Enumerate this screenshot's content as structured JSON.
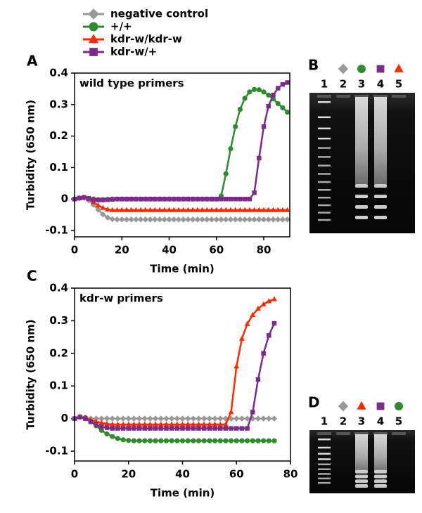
{
  "chart_data": [
    {
      "type": "line",
      "panel_label": "A",
      "annotation": "wild type primers",
      "x_label": "Time (min)",
      "y_label": "Turbidity (650 nm)",
      "legend": true,
      "x": [
        0,
        2,
        4,
        6,
        8,
        10,
        12,
        14,
        16,
        18,
        20,
        22,
        24,
        26,
        28,
        30,
        32,
        34,
        36,
        38,
        40,
        42,
        44,
        46,
        48,
        50,
        52,
        54,
        56,
        58,
        60,
        62,
        64,
        66,
        68,
        70,
        72,
        74,
        76,
        78,
        80,
        82,
        84,
        86,
        88,
        90
      ],
      "xlim": [
        0,
        91
      ],
      "xticks": [
        0,
        20,
        40,
        60,
        80
      ],
      "ylim": [
        -0.12,
        0.4
      ],
      "yticks": [
        -0.1,
        0,
        0.1,
        0.2,
        0.3,
        0.4
      ],
      "series": [
        {
          "name": "negative control",
          "color": "#999999",
          "marker": "diamond",
          "values": [
            0,
            0.003,
            0.004,
            -0.004,
            -0.018,
            -0.034,
            -0.049,
            -0.059,
            -0.064,
            -0.065,
            -0.065,
            -0.065,
            -0.065,
            -0.065,
            -0.065,
            -0.065,
            -0.065,
            -0.065,
            -0.065,
            -0.065,
            -0.065,
            -0.065,
            -0.065,
            -0.065,
            -0.065,
            -0.065,
            -0.065,
            -0.065,
            -0.065,
            -0.065,
            -0.065,
            -0.065,
            -0.065,
            -0.065,
            -0.065,
            -0.065,
            -0.065,
            -0.065,
            -0.065,
            -0.065,
            -0.065,
            -0.065,
            -0.065,
            -0.065,
            -0.065,
            -0.065
          ]
        },
        {
          "name": "+/+",
          "color": "#2e8b2e",
          "marker": "circle",
          "values": [
            0,
            0.003,
            0.005,
            0.002,
            0,
            -0.002,
            -0.002,
            -0.001,
            0,
            0,
            0,
            0,
            0,
            0,
            0,
            0,
            0,
            0,
            0,
            0,
            0,
            0,
            0,
            0,
            0,
            0,
            0,
            0,
            0,
            0,
            0,
            0.01,
            0.08,
            0.16,
            0.23,
            0.285,
            0.32,
            0.34,
            0.348,
            0.347,
            0.34,
            0.33,
            0.318,
            0.303,
            0.29,
            0.276
          ]
        },
        {
          "name": "kdr-w/kdr-w",
          "color": "#ff2a00",
          "marker": "triangle",
          "values": [
            0,
            0.003,
            0.005,
            0,
            -0.01,
            -0.02,
            -0.028,
            -0.033,
            -0.035,
            -0.035,
            -0.035,
            -0.035,
            -0.035,
            -0.035,
            -0.035,
            -0.035,
            -0.035,
            -0.035,
            -0.035,
            -0.035,
            -0.035,
            -0.035,
            -0.035,
            -0.035,
            -0.035,
            -0.035,
            -0.035,
            -0.035,
            -0.035,
            -0.035,
            -0.035,
            -0.035,
            -0.035,
            -0.035,
            -0.035,
            -0.035,
            -0.035,
            -0.035,
            -0.035,
            -0.035,
            -0.035,
            -0.035,
            -0.035,
            -0.035,
            -0.035,
            -0.035
          ]
        },
        {
          "name": "kdr-w/+",
          "color": "#7b2b8c",
          "marker": "square",
          "values": [
            0,
            0.003,
            0.005,
            0.002,
            -0.002,
            -0.003,
            -0.003,
            -0.002,
            -0.001,
            0,
            0,
            0,
            0,
            0,
            0,
            0,
            0,
            0,
            0,
            0,
            0,
            0,
            0,
            0,
            0,
            0,
            0,
            0,
            0,
            0,
            0,
            0,
            0,
            0,
            0,
            0,
            0,
            0,
            0.02,
            0.13,
            0.23,
            0.295,
            0.33,
            0.352,
            0.364,
            0.37
          ]
        }
      ]
    },
    {
      "type": "line",
      "panel_label": "C",
      "annotation": "kdr-w primers",
      "x_label": "Time (min)",
      "y_label": "Turbidity (650 nm)",
      "x": [
        0,
        2,
        4,
        6,
        8,
        10,
        12,
        14,
        16,
        18,
        20,
        22,
        24,
        26,
        28,
        30,
        32,
        34,
        36,
        38,
        40,
        42,
        44,
        46,
        48,
        50,
        52,
        54,
        56,
        58,
        60,
        62,
        64,
        66,
        68,
        70,
        72,
        74
      ],
      "xlim": [
        0,
        80
      ],
      "xticks": [
        0,
        20,
        40,
        60,
        80
      ],
      "ylim": [
        -0.13,
        0.4
      ],
      "yticks": [
        -0.1,
        0,
        0.1,
        0.2,
        0.3,
        0.4
      ],
      "series": [
        {
          "color": "#999999",
          "marker": "diamond",
          "values": [
            0,
            0.005,
            0.003,
            0,
            0,
            0,
            0,
            0,
            0,
            0,
            0,
            0,
            0,
            0,
            0,
            0,
            0,
            0,
            0,
            0,
            0,
            0,
            0,
            0,
            0,
            0,
            0,
            0,
            0,
            0,
            0,
            0,
            0,
            0,
            0,
            0,
            0,
            0
          ]
        },
        {
          "color": "#2e8b2e",
          "marker": "circle",
          "values": [
            0,
            0.005,
            0.003,
            -0.008,
            -0.022,
            -0.036,
            -0.047,
            -0.055,
            -0.061,
            -0.065,
            -0.067,
            -0.068,
            -0.068,
            -0.068,
            -0.068,
            -0.068,
            -0.068,
            -0.068,
            -0.068,
            -0.068,
            -0.068,
            -0.068,
            -0.068,
            -0.068,
            -0.068,
            -0.068,
            -0.068,
            -0.068,
            -0.068,
            -0.068,
            -0.068,
            -0.068,
            -0.068,
            -0.068,
            -0.068,
            -0.068,
            -0.068,
            -0.068
          ]
        },
        {
          "color": "#ff2a00",
          "marker": "triangle",
          "values": [
            0,
            0.005,
            0.002,
            -0.004,
            -0.009,
            -0.013,
            -0.016,
            -0.018,
            -0.018,
            -0.018,
            -0.018,
            -0.018,
            -0.018,
            -0.018,
            -0.018,
            -0.018,
            -0.018,
            -0.018,
            -0.018,
            -0.018,
            -0.018,
            -0.018,
            -0.018,
            -0.018,
            -0.018,
            -0.018,
            -0.018,
            -0.018,
            -0.018,
            0.02,
            0.16,
            0.245,
            0.29,
            0.318,
            0.337,
            0.35,
            0.36,
            0.366
          ]
        },
        {
          "color": "#7b2b8c",
          "marker": "square",
          "values": [
            0,
            0.005,
            0,
            -0.01,
            -0.019,
            -0.025,
            -0.028,
            -0.03,
            -0.03,
            -0.03,
            -0.03,
            -0.03,
            -0.03,
            -0.03,
            -0.03,
            -0.03,
            -0.03,
            -0.03,
            -0.03,
            -0.03,
            -0.03,
            -0.03,
            -0.03,
            -0.03,
            -0.03,
            -0.03,
            -0.03,
            -0.03,
            -0.03,
            -0.03,
            -0.03,
            -0.03,
            -0.03,
            0.02,
            0.12,
            0.2,
            0.255,
            0.292
          ]
        }
      ]
    }
  ],
  "gels": [
    {
      "panel_label": "B",
      "lanes": [
        "1",
        "2",
        "3",
        "4",
        "5"
      ],
      "lane_markers": [
        null,
        {
          "marker": "diamond",
          "color": "#999999"
        },
        {
          "marker": "circle",
          "color": "#2e8b2e"
        },
        {
          "marker": "square",
          "color": "#7b2b8c"
        },
        {
          "marker": "triangle",
          "color": "#ff2a00"
        }
      ]
    },
    {
      "panel_label": "D",
      "lanes": [
        "1",
        "2",
        "3",
        "4",
        "5"
      ],
      "lane_markers": [
        null,
        {
          "marker": "diamond",
          "color": "#999999"
        },
        {
          "marker": "triangle",
          "color": "#ff2a00"
        },
        {
          "marker": "square",
          "color": "#7b2b8c"
        },
        {
          "marker": "circle",
          "color": "#2e8b2e"
        }
      ]
    }
  ]
}
